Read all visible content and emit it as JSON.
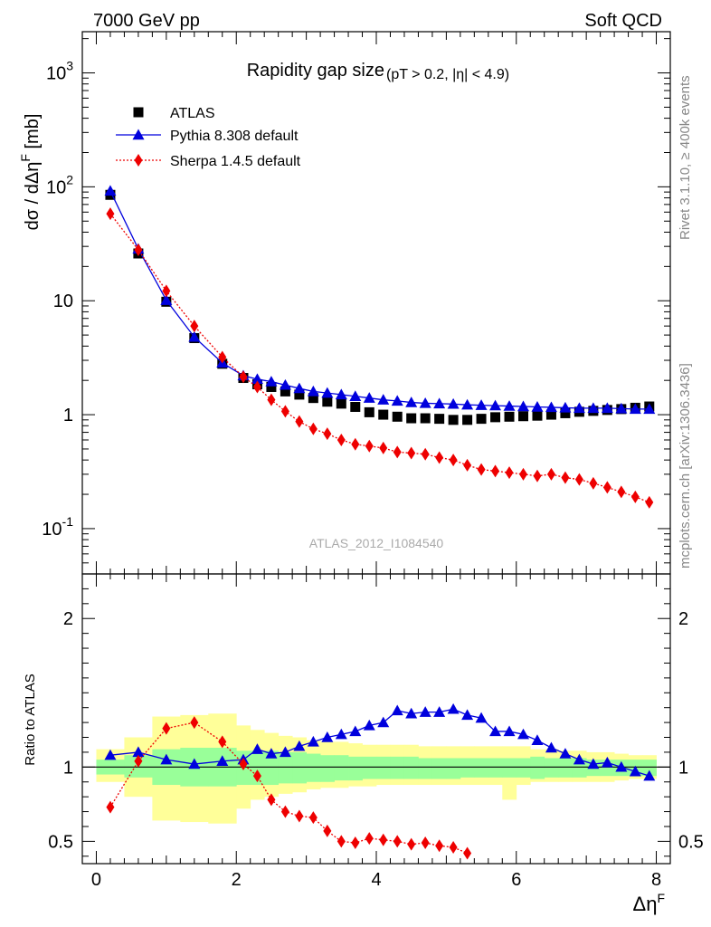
{
  "header": {
    "left": "7000 GeV pp",
    "right": "Soft QCD"
  },
  "side_labels": {
    "rivet": "Rivet 3.1.10, ≥ 400k events",
    "mcplots": "mcplots.cern.ch [arXiv:1306.3436]"
  },
  "colors": {
    "atlas": "#000000",
    "pythia": "#0000dd",
    "sherpa": "#ee0000",
    "band_inner": "#99ff99",
    "band_outer": "#ffff99",
    "watermark": "#aaaaaa"
  },
  "chart_data": [
    {
      "type": "scatter",
      "panel": "main",
      "title": "Rapidity gap size",
      "title_suffix": "(pT > 0.2, |η| < 4.9)",
      "watermark": "ATLAS_2012_I1084540",
      "ylabel": "dσ / dΔη^F [mb]",
      "xlim": [
        -0.2,
        8.2
      ],
      "ylim": [
        0.04,
        2300
      ],
      "yscale": "log",
      "ytick_labels": [
        "10^-1",
        "1",
        "10",
        "10^2",
        "10^3"
      ],
      "legend_position": "top-left",
      "series": [
        {
          "name": "ATLAS",
          "marker": "square",
          "x": [
            0.2,
            0.6,
            1.0,
            1.4,
            1.8,
            2.1,
            2.3,
            2.5,
            2.7,
            2.9,
            3.1,
            3.3,
            3.5,
            3.7,
            3.9,
            4.1,
            4.3,
            4.5,
            4.7,
            4.9,
            5.1,
            5.3,
            5.5,
            5.7,
            5.9,
            6.1,
            6.3,
            6.5,
            6.7,
            6.9,
            7.1,
            7.3,
            7.5,
            7.7,
            7.9
          ],
          "y": [
            85,
            26,
            9.8,
            4.7,
            2.8,
            2.1,
            1.85,
            1.75,
            1.6,
            1.5,
            1.4,
            1.3,
            1.25,
            1.17,
            1.05,
            1.0,
            0.96,
            0.93,
            0.93,
            0.92,
            0.9,
            0.9,
            0.92,
            0.95,
            0.96,
            0.97,
            0.98,
            1.0,
            1.03,
            1.06,
            1.08,
            1.1,
            1.12,
            1.15,
            1.18
          ]
        },
        {
          "name": "Pythia 8.308 default",
          "marker": "triangle",
          "x": [
            0.2,
            0.6,
            1.0,
            1.4,
            1.8,
            2.1,
            2.3,
            2.5,
            2.7,
            2.9,
            3.1,
            3.3,
            3.5,
            3.7,
            3.9,
            4.1,
            4.3,
            4.5,
            4.7,
            4.9,
            5.1,
            5.3,
            5.5,
            5.7,
            5.9,
            6.1,
            6.3,
            6.5,
            6.7,
            6.9,
            7.1,
            7.3,
            7.5,
            7.7,
            7.9
          ],
          "y": [
            92,
            28.5,
            10.1,
            4.8,
            2.85,
            2.2,
            2.05,
            1.95,
            1.82,
            1.7,
            1.6,
            1.55,
            1.5,
            1.45,
            1.4,
            1.35,
            1.32,
            1.28,
            1.26,
            1.25,
            1.24,
            1.22,
            1.21,
            1.2,
            1.19,
            1.18,
            1.17,
            1.16,
            1.15,
            1.14,
            1.14,
            1.14,
            1.13,
            1.12,
            1.12
          ]
        },
        {
          "name": "Sherpa 1.4.5 default",
          "marker": "diamond",
          "x": [
            0.2,
            0.6,
            1.0,
            1.4,
            1.8,
            2.1,
            2.3,
            2.5,
            2.7,
            2.9,
            3.1,
            3.3,
            3.5,
            3.7,
            3.9,
            4.1,
            4.3,
            4.5,
            4.7,
            4.9,
            5.1,
            5.3,
            5.5,
            5.7,
            5.9,
            6.1,
            6.3,
            6.5,
            6.7,
            6.9,
            7.1,
            7.3,
            7.5,
            7.7,
            7.9
          ],
          "y": [
            58,
            28,
            12.2,
            6.0,
            3.2,
            2.15,
            1.75,
            1.35,
            1.07,
            0.87,
            0.75,
            0.68,
            0.6,
            0.55,
            0.53,
            0.51,
            0.47,
            0.46,
            0.45,
            0.42,
            0.4,
            0.36,
            0.33,
            0.32,
            0.31,
            0.3,
            0.29,
            0.3,
            0.28,
            0.27,
            0.25,
            0.23,
            0.21,
            0.19,
            0.17
          ]
        }
      ]
    },
    {
      "type": "scatter",
      "panel": "ratio",
      "xlabel": "Δη^F",
      "ylabel": "Ratio to ATLAS",
      "xlim": [
        -0.2,
        8.2
      ],
      "ylim": [
        0.35,
        2.3
      ],
      "yticks": [
        0.5,
        1,
        2
      ],
      "xticks": [
        0,
        2,
        4,
        6,
        8
      ],
      "reference_line": 1,
      "uncertainty_bands": {
        "edges": [
          0.0,
          0.4,
          0.8,
          1.2,
          1.6,
          2.0,
          2.2,
          2.4,
          2.6,
          2.8,
          3.0,
          3.2,
          3.4,
          3.6,
          3.8,
          4.0,
          4.2,
          4.4,
          4.6,
          4.8,
          5.0,
          5.2,
          5.4,
          5.6,
          5.8,
          6.0,
          6.2,
          6.4,
          6.6,
          6.8,
          7.0,
          7.2,
          7.4,
          7.6,
          7.8,
          8.0
        ],
        "inner_low": [
          0.95,
          0.93,
          0.88,
          0.87,
          0.87,
          0.88,
          0.88,
          0.88,
          0.89,
          0.89,
          0.9,
          0.9,
          0.91,
          0.91,
          0.92,
          0.92,
          0.92,
          0.92,
          0.92,
          0.92,
          0.92,
          0.93,
          0.93,
          0.93,
          0.93,
          0.93,
          0.92,
          0.93,
          0.93,
          0.93,
          0.94,
          0.94,
          0.94,
          0.94,
          0.94
        ],
        "inner_high": [
          1.05,
          1.08,
          1.12,
          1.13,
          1.13,
          1.11,
          1.11,
          1.11,
          1.1,
          1.1,
          1.09,
          1.08,
          1.08,
          1.07,
          1.07,
          1.07,
          1.07,
          1.07,
          1.06,
          1.06,
          1.06,
          1.06,
          1.06,
          1.06,
          1.06,
          1.06,
          1.07,
          1.06,
          1.06,
          1.06,
          1.05,
          1.05,
          1.05,
          1.05,
          1.05
        ],
        "outer_low": [
          0.9,
          0.8,
          0.64,
          0.63,
          0.62,
          0.72,
          0.78,
          0.8,
          0.82,
          0.83,
          0.85,
          0.86,
          0.86,
          0.87,
          0.87,
          0.88,
          0.88,
          0.88,
          0.88,
          0.88,
          0.88,
          0.88,
          0.88,
          0.88,
          0.78,
          0.88,
          0.9,
          0.9,
          0.9,
          0.9,
          0.9,
          0.9,
          0.91,
          0.92,
          0.92
        ],
        "outer_high": [
          1.12,
          1.2,
          1.34,
          1.35,
          1.36,
          1.28,
          1.25,
          1.23,
          1.21,
          1.2,
          1.18,
          1.17,
          1.17,
          1.16,
          1.15,
          1.15,
          1.15,
          1.15,
          1.14,
          1.14,
          1.14,
          1.14,
          1.14,
          1.14,
          1.14,
          1.14,
          1.12,
          1.12,
          1.11,
          1.11,
          1.1,
          1.1,
          1.09,
          1.08,
          1.08
        ]
      },
      "series": [
        {
          "name": "Pythia 8.308 default",
          "marker": "triangle",
          "x": [
            0.2,
            0.6,
            1.0,
            1.4,
            1.8,
            2.1,
            2.3,
            2.5,
            2.7,
            2.9,
            3.1,
            3.3,
            3.5,
            3.7,
            3.9,
            4.1,
            4.3,
            4.5,
            4.7,
            4.9,
            5.1,
            5.3,
            5.5,
            5.7,
            5.9,
            6.1,
            6.3,
            6.5,
            6.7,
            6.9,
            7.1,
            7.3,
            7.5,
            7.7,
            7.9
          ],
          "y": [
            1.08,
            1.1,
            1.05,
            1.02,
            1.04,
            1.05,
            1.12,
            1.09,
            1.1,
            1.14,
            1.17,
            1.2,
            1.22,
            1.24,
            1.28,
            1.3,
            1.38,
            1.36,
            1.37,
            1.37,
            1.39,
            1.35,
            1.33,
            1.24,
            1.24,
            1.22,
            1.18,
            1.13,
            1.09,
            1.05,
            1.02,
            1.03,
            1.0,
            0.97,
            0.94
          ]
        },
        {
          "name": "Sherpa 1.4.5 default",
          "marker": "diamond",
          "x": [
            0.2,
            0.6,
            1.0,
            1.4,
            1.8,
            2.1,
            2.3,
            2.5,
            2.7,
            2.9,
            3.1,
            3.3,
            3.5,
            3.7,
            3.9,
            4.1,
            4.3,
            4.5,
            4.7,
            4.9,
            5.1,
            5.3
          ],
          "y": [
            0.73,
            1.04,
            1.26,
            1.3,
            1.17,
            1.02,
            0.94,
            0.78,
            0.7,
            0.67,
            0.66,
            0.57,
            0.5,
            0.49,
            0.52,
            0.51,
            0.5,
            0.48,
            0.49,
            0.47,
            0.46,
            0.42
          ]
        }
      ]
    }
  ]
}
